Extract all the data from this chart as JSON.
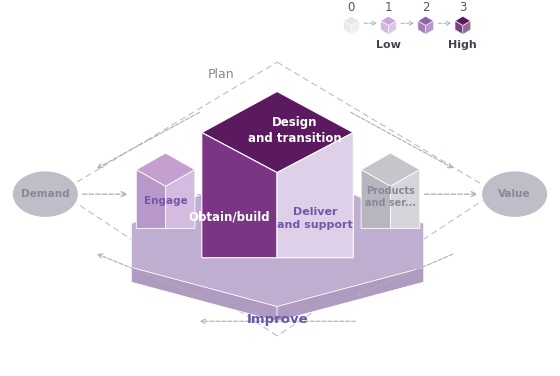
{
  "background_color": "#ffffff",
  "deep_purple": "#5b1a60",
  "mid_purple": "#7a3585",
  "light_purple": "#c4a0d0",
  "very_light_purple": "#ddd0e8",
  "pale_purple": "#cbb8d8",
  "platform_color": "#c0aed0",
  "platform_side_color": "#b09ac0",
  "engage_top": "#c4a0d0",
  "engage_front_l": "#b898c8",
  "engage_front_r": "#d4bce0",
  "products_top": "#c8c4cc",
  "products_front_l": "#b8b4c0",
  "products_front_r": "#d8d4dc",
  "demand_value_color": "#c0bcc8",
  "arrow_color": "#b0acb8",
  "text_gray": "#888898",
  "text_white": "#ffffff",
  "text_purple_dark": "#5b1a60",
  "legend_colors": [
    "#e8e4ec",
    "#c8a8d8",
    "#9060a8",
    "#5b1a60"
  ],
  "legend_nums": [
    "0",
    "1",
    "2",
    "3"
  ],
  "frame_color": "#c8c0d0"
}
